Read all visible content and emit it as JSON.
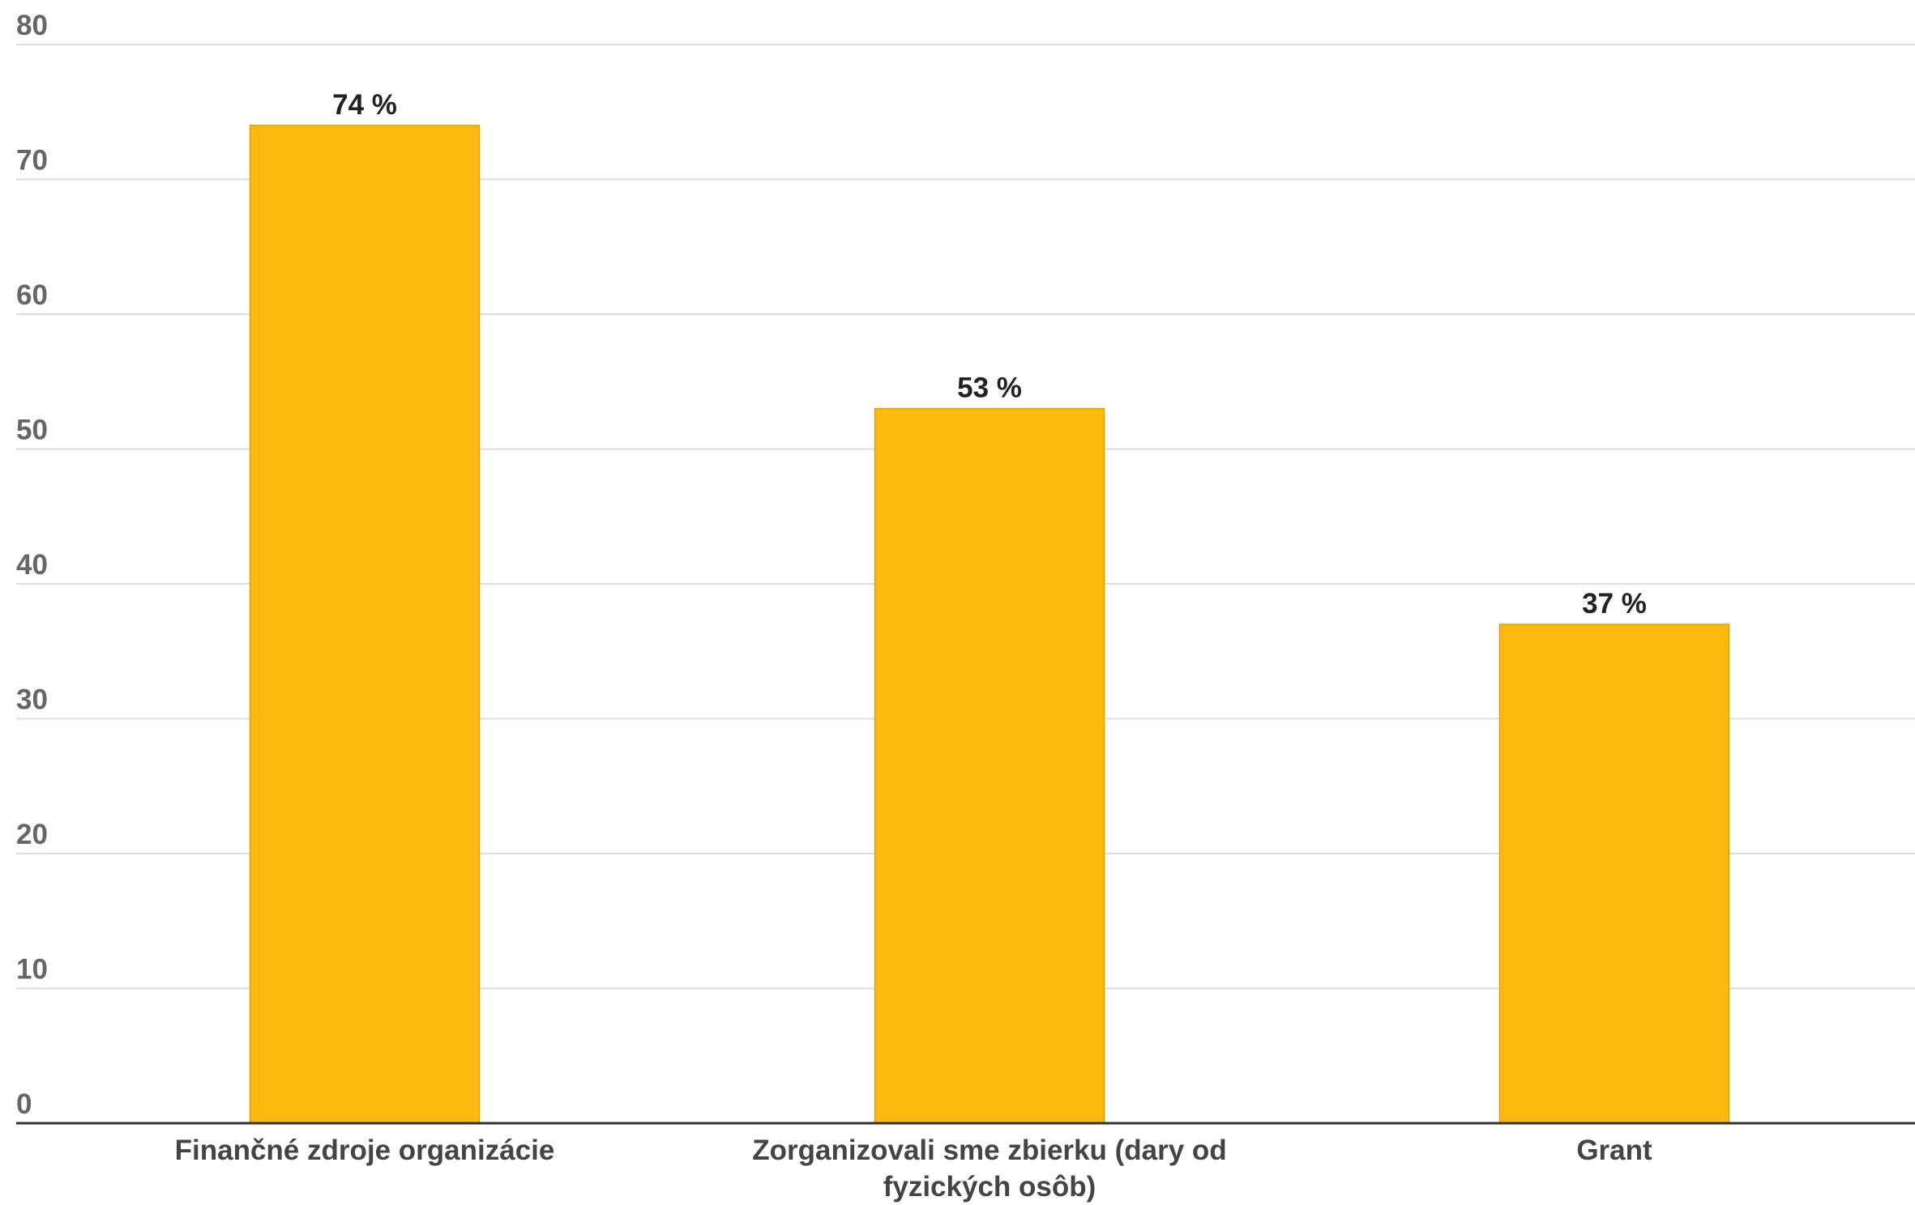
{
  "chart_data": {
    "type": "bar",
    "categories": [
      [
        "Finančné zdroje organizácie"
      ],
      [
        "Zorganizovali sme zbierku (dary od",
        "fyzických osôb)"
      ],
      [
        "Grant"
      ]
    ],
    "values": [
      74,
      53,
      37
    ],
    "data_labels": [
      "74 %",
      "53 %",
      "37 %"
    ],
    "ylim": [
      0,
      80
    ],
    "yticks": [
      0,
      10,
      20,
      30,
      40,
      50,
      60,
      70,
      80
    ],
    "grid": true,
    "legend": "none",
    "colors": {
      "bar": "#FDB90D",
      "bar_border": "#D9A20C",
      "grid": "#DDDDDD",
      "axis": "#333333"
    }
  }
}
